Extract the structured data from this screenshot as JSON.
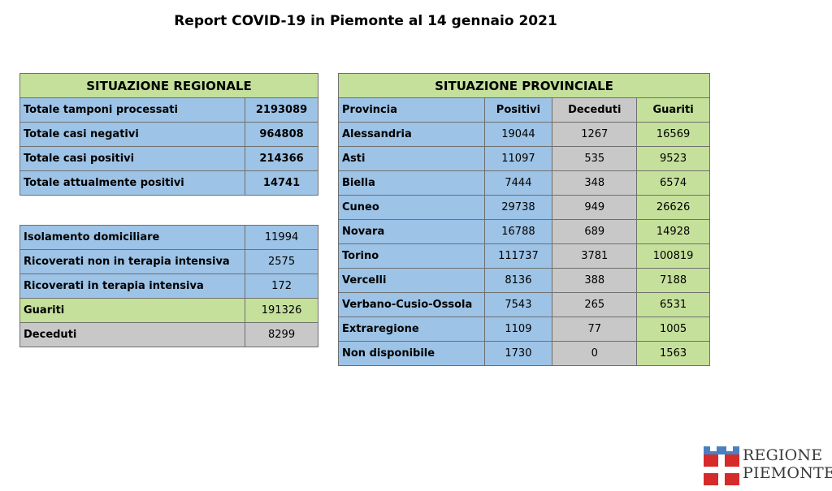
{
  "title": "Report COVID-19 in Piemonte al 14 gennaio 2021",
  "regionale": {
    "header": "SITUAZIONE REGIONALE",
    "totals": [
      {
        "label": "Totale tamponi processati",
        "value": "2193089"
      },
      {
        "label": "Totale casi negativi",
        "value": "964808"
      },
      {
        "label": "Totale casi positivi",
        "value": "214366"
      },
      {
        "label": "Totale attualmente positivi",
        "value": "14741"
      }
    ],
    "details": [
      {
        "label": "Isolamento domiciliare",
        "value": "11994"
      },
      {
        "label": "Ricoverati non in terapia intensiva",
        "value": "2575"
      },
      {
        "label": "Ricoverati in terapia intensiva",
        "value": "172"
      },
      {
        "label": "Guariti",
        "value": "191326"
      },
      {
        "label": "Deceduti",
        "value": "8299"
      }
    ]
  },
  "provinciale": {
    "header": "SITUAZIONE PROVINCIALE",
    "columns": [
      "Provincia",
      "Positivi",
      "Deceduti",
      "Guariti"
    ],
    "rows": [
      [
        "Alessandria",
        "19044",
        "1267",
        "16569"
      ],
      [
        "Asti",
        "11097",
        "535",
        "9523"
      ],
      [
        "Biella",
        "7444",
        "348",
        "6574"
      ],
      [
        "Cuneo",
        "29738",
        "949",
        "26626"
      ],
      [
        "Novara",
        "16788",
        "689",
        "14928"
      ],
      [
        "Torino",
        "111737",
        "3781",
        "100819"
      ],
      [
        "Vercelli",
        "8136",
        "388",
        "7188"
      ],
      [
        "Verbano-Cusio-Ossola",
        "7543",
        "265",
        "6531"
      ],
      [
        "Extraregione",
        "1109",
        "77",
        "1005"
      ],
      [
        "Non disponibile",
        "1730",
        "0",
        "1563"
      ]
    ]
  },
  "logo": {
    "line1": "REGIONE",
    "line2": "PIEMONTE"
  },
  "colors": {
    "blue": "#9dc3e6",
    "green": "#c5e09b",
    "grey": "#c8c8c8"
  }
}
